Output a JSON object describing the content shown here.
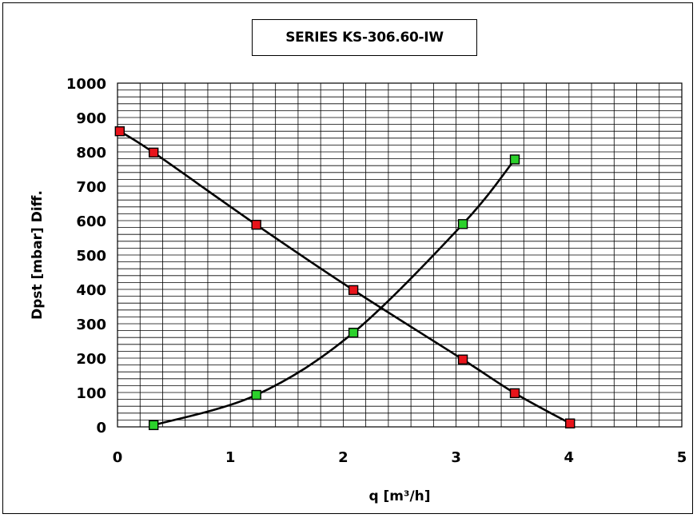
{
  "chart_data": {
    "type": "line",
    "title": "SERIES KS-306.60-IW",
    "xlabel": "q [m³/h]",
    "ylabel": "Dpst [mbar] Diff.",
    "xlim": [
      0,
      5
    ],
    "ylim": [
      0,
      1000
    ],
    "x_ticks": [
      "0",
      "1",
      "2",
      "3",
      "4",
      "5"
    ],
    "y_ticks": [
      "0",
      "100",
      "200",
      "300",
      "400",
      "500",
      "600",
      "700",
      "800",
      "900",
      "1000"
    ],
    "grid": true,
    "series": [
      {
        "color": "#e8141b",
        "marker": "square",
        "x": [
          0.02,
          0.32,
          1.23,
          2.09,
          3.06,
          3.52,
          4.01
        ],
        "y": [
          860,
          798,
          588,
          398,
          196,
          98,
          10
        ]
      },
      {
        "color": "#2bd12b",
        "marker": "square",
        "x": [
          0.32,
          1.23,
          2.09,
          3.06,
          3.52
        ],
        "y": [
          5,
          93,
          274,
          590,
          778
        ]
      }
    ]
  }
}
